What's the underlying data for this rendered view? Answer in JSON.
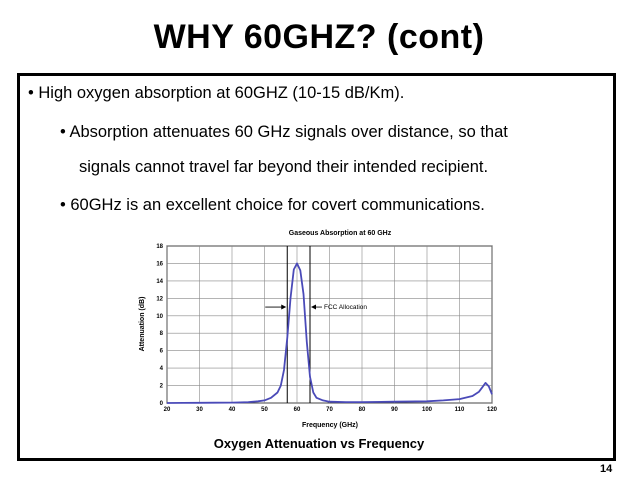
{
  "slide": {
    "title": "WHY 60GHZ? (cont)",
    "bullets": [
      "• High oxygen absorption at 60GHZ (10-15 dB/Km).",
      "• Absorption attenuates 60 GHz signals over distance, so that",
      "signals cannot travel far beyond their intended recipient.",
      "• 60GHz is an excellent choice for covert communications."
    ],
    "caption": "Oxygen Attenuation vs Frequency",
    "page_number": "14"
  },
  "chart_data": {
    "type": "line",
    "title": "Gaseous Absorption at 60 GHz",
    "xlabel": "Frequency (GHz)",
    "ylabel": "Attenuation (dB)",
    "xlim": [
      20,
      120
    ],
    "ylim": [
      0,
      18
    ],
    "xticks": [
      20,
      30,
      40,
      50,
      60,
      70,
      80,
      90,
      100,
      110,
      120
    ],
    "yticks": [
      0,
      2,
      4,
      6,
      8,
      10,
      12,
      14,
      16,
      18
    ],
    "grid": true,
    "annotation": "FCC Allocation",
    "fcc_band": [
      57,
      64
    ],
    "line_color": "#4a4ab8",
    "series": [
      {
        "x": [
          20,
          25,
          30,
          35,
          40,
          45,
          48,
          50,
          52,
          54,
          55,
          56,
          57,
          58,
          59,
          60,
          61,
          62,
          63,
          64,
          65,
          66,
          68,
          70,
          75,
          80,
          90,
          100,
          105,
          110,
          114,
          116,
          117,
          118,
          119,
          120
        ],
        "y": [
          0.0,
          0.01,
          0.02,
          0.03,
          0.05,
          0.1,
          0.2,
          0.3,
          0.6,
          1.2,
          2.0,
          3.8,
          7.5,
          12.0,
          15.3,
          16.0,
          15.2,
          12.5,
          7.0,
          3.0,
          1.2,
          0.6,
          0.3,
          0.15,
          0.1,
          0.1,
          0.15,
          0.2,
          0.3,
          0.45,
          0.8,
          1.3,
          1.8,
          2.3,
          1.9,
          1.0
        ]
      }
    ]
  }
}
